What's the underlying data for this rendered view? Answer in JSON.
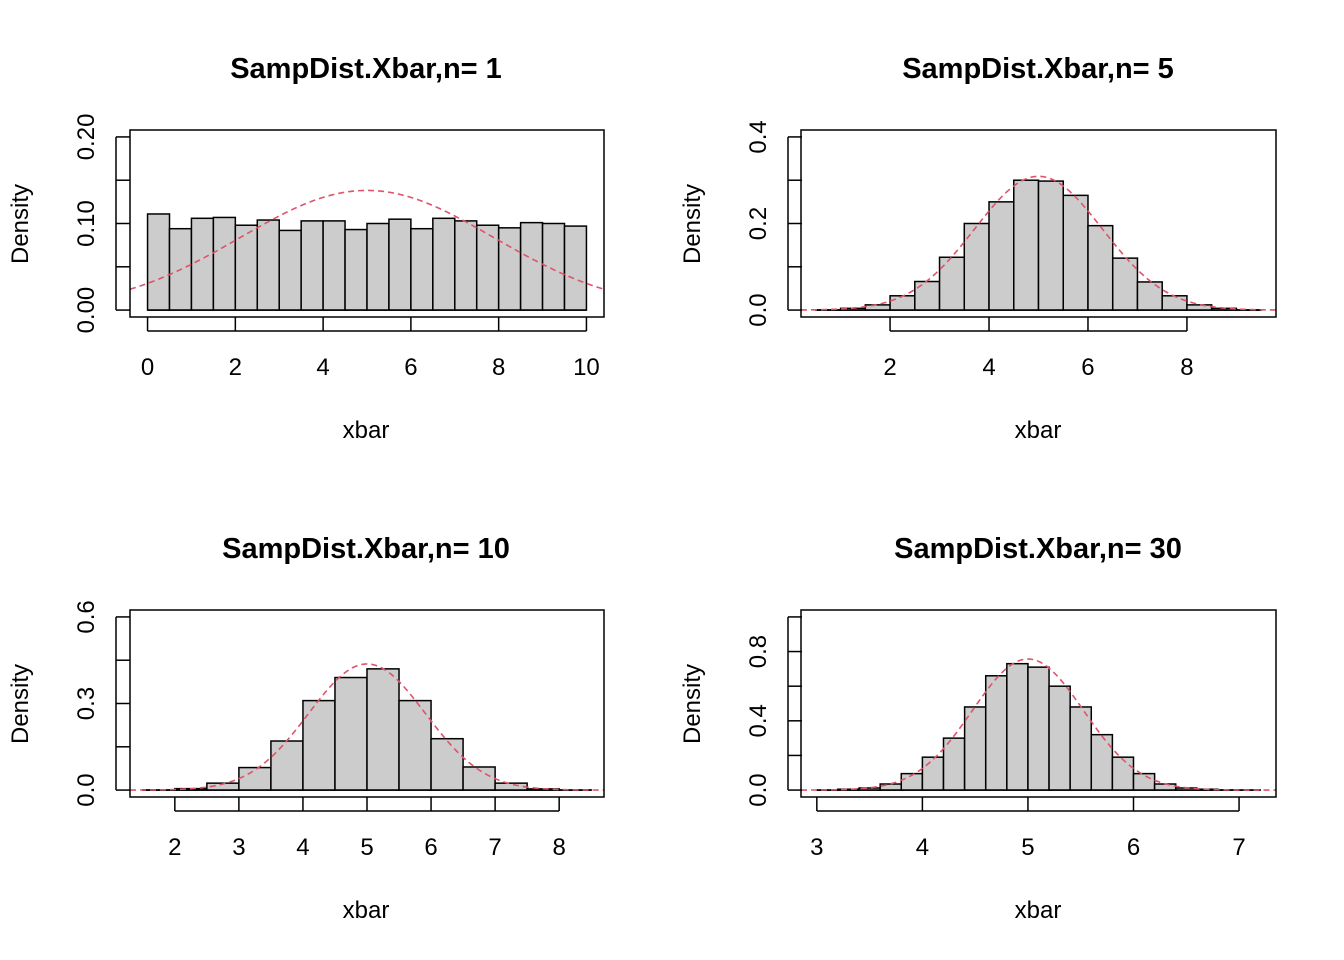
{
  "curve_color": "#DF536B",
  "bar_color": "#CCCCCC",
  "chart_data": [
    {
      "type": "bar",
      "title": "SampDist.Xbar,n= 1",
      "xlabel": "xbar",
      "ylabel": "Density",
      "xlim": [
        -0.4,
        10.4
      ],
      "ylim": [
        0,
        0.2
      ],
      "xticks": [
        0,
        2,
        4,
        6,
        8,
        10
      ],
      "yticks": [
        0,
        0.05,
        0.1,
        0.15,
        0.2
      ],
      "ytick_labels": [
        "0.00",
        "",
        "0.10",
        "",
        "0.20"
      ],
      "bin_edges": [
        0,
        0.5,
        1,
        1.5,
        2,
        2.5,
        3,
        3.5,
        4,
        4.5,
        5,
        5.5,
        6,
        6.5,
        7,
        7.5,
        8,
        8.5,
        9,
        9.5,
        10
      ],
      "values": [
        0.111,
        0.094,
        0.106,
        0.107,
        0.098,
        0.104,
        0.092,
        0.103,
        0.103,
        0.093,
        0.1,
        0.105,
        0.094,
        0.106,
        0.103,
        0.098,
        0.095,
        0.101,
        0.1,
        0.097
      ],
      "normal_curve": {
        "mean": 5,
        "sd": 2.887,
        "dashed": true
      }
    },
    {
      "type": "bar",
      "title": "SampDist.Xbar,n= 5",
      "xlabel": "xbar",
      "ylabel": "Density",
      "xlim": [
        0.2,
        9.8
      ],
      "ylim": [
        0,
        0.4
      ],
      "xticks": [
        2,
        4,
        6,
        8
      ],
      "yticks": [
        0,
        0.1,
        0.2,
        0.3,
        0.4
      ],
      "ytick_labels": [
        "0.0",
        "",
        "0.2",
        "",
        "0.4"
      ],
      "bin_edges": [
        0.5,
        1,
        1.5,
        2,
        2.5,
        3,
        3.5,
        4,
        4.5,
        5,
        5.5,
        6,
        6.5,
        7,
        7.5,
        8,
        8.5,
        9,
        9.5
      ],
      "values": [
        0.0005,
        0.004,
        0.012,
        0.033,
        0.066,
        0.122,
        0.2,
        0.25,
        0.3,
        0.298,
        0.265,
        0.195,
        0.12,
        0.065,
        0.033,
        0.012,
        0.004,
        0.0005
      ],
      "normal_curve": {
        "mean": 5,
        "sd": 1.291,
        "dashed": true
      }
    },
    {
      "type": "bar",
      "title": "SampDist.Xbar,n= 10",
      "xlabel": "xbar",
      "ylabel": "Density",
      "xlim": [
        1.3,
        8.7
      ],
      "ylim": [
        0,
        0.6
      ],
      "xticks": [
        2,
        3,
        4,
        5,
        6,
        7,
        8
      ],
      "yticks": [
        0,
        0.15,
        0.3,
        0.45,
        0.6
      ],
      "ytick_labels": [
        "0.0",
        "",
        "0.3",
        "",
        "0.6"
      ],
      "bin_edges": [
        1.5,
        2,
        2.5,
        3,
        3.5,
        4,
        4.5,
        5,
        5.5,
        6,
        6.5,
        7,
        7.5,
        8,
        8.5
      ],
      "values": [
        0.0005,
        0.005,
        0.024,
        0.078,
        0.17,
        0.31,
        0.39,
        0.42,
        0.31,
        0.178,
        0.08,
        0.024,
        0.004,
        0.0005
      ],
      "normal_curve": {
        "mean": 5,
        "sd": 0.913,
        "dashed": true
      }
    },
    {
      "type": "bar",
      "title": "SampDist.Xbar,n= 30",
      "xlabel": "xbar",
      "ylabel": "Density",
      "xlim": [
        2.85,
        7.35
      ],
      "ylim": [
        0,
        1.0
      ],
      "xticks": [
        3,
        4,
        5,
        6,
        7
      ],
      "yticks": [
        0,
        0.2,
        0.4,
        0.6,
        0.8,
        1.0
      ],
      "ytick_labels": [
        "0.0",
        "",
        "0.4",
        "",
        "0.8",
        ""
      ],
      "bin_edges": [
        3,
        3.2,
        3.4,
        3.6,
        3.8,
        4,
        4.2,
        4.4,
        4.6,
        4.8,
        5,
        5.2,
        5.4,
        5.6,
        5.8,
        6,
        6.2,
        6.4,
        6.6,
        6.8,
        7,
        7.2
      ],
      "values": [
        0.0005,
        0.005,
        0.012,
        0.035,
        0.095,
        0.19,
        0.3,
        0.48,
        0.66,
        0.73,
        0.71,
        0.6,
        0.48,
        0.32,
        0.19,
        0.095,
        0.035,
        0.012,
        0.005,
        0.001,
        0.0005
      ],
      "normal_curve": {
        "mean": 5,
        "sd": 0.527,
        "dashed": true
      }
    }
  ]
}
